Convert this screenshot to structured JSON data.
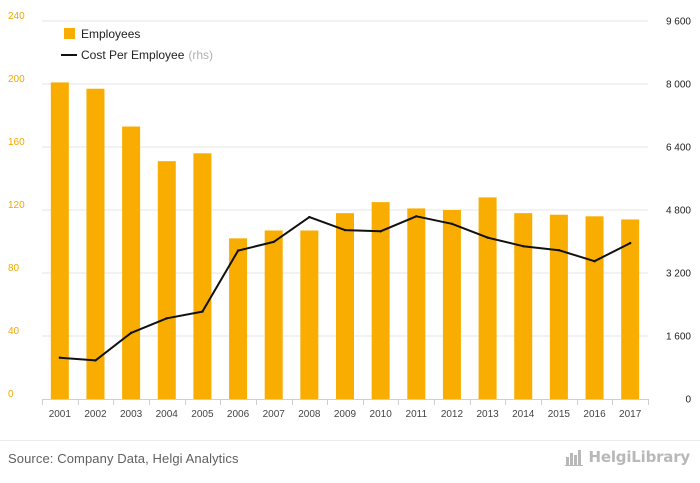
{
  "colors": {
    "bar": "#f9ad00",
    "line": "#111111",
    "left_axis_text": "#f0a800",
    "grid": "#e6e6e6"
  },
  "footer": {
    "source": "Source: Company Data, Helgi Analytics",
    "logo_text": "HelgiLibrary",
    "logo_icon": "chart-icon"
  },
  "legend": {
    "bar_label": "Employees",
    "line_label": "Cost Per Employee",
    "line_suffix": "(rhs)",
    "placement": "top-left"
  },
  "chart_data": {
    "type": "bar",
    "categories": [
      "2001",
      "2002",
      "2003",
      "2004",
      "2005",
      "2006",
      "2007",
      "2008",
      "2009",
      "2010",
      "2011",
      "2012",
      "2013",
      "2014",
      "2015",
      "2016",
      "2017"
    ],
    "series": [
      {
        "name": "Employees",
        "type": "bar",
        "axis": "left",
        "values": [
          201,
          197,
          173,
          151,
          156,
          102,
          107,
          107,
          118,
          125,
          121,
          120,
          128,
          118,
          117,
          116,
          114
        ]
      },
      {
        "name": "Cost Per Employee",
        "type": "line",
        "axis": "right",
        "values": [
          1050,
          980,
          1680,
          2050,
          2220,
          3770,
          3990,
          4620,
          4290,
          4260,
          4640,
          4450,
          4100,
          3880,
          3780,
          3500,
          3960
        ]
      }
    ],
    "y_left": {
      "ylim": [
        0,
        240
      ],
      "ticks": [
        0,
        40,
        80,
        120,
        160,
        200,
        240
      ],
      "tick_labels": [
        "0",
        "40",
        "80",
        "120",
        "160",
        "200",
        "240"
      ]
    },
    "y_right": {
      "ylim": [
        0,
        9600
      ],
      "ticks": [
        0,
        1600,
        3200,
        4800,
        6400,
        8000,
        9600
      ],
      "tick_labels": [
        "0",
        "1 600",
        "3 200",
        "4 800",
        "6 400",
        "8 000",
        "9 600"
      ]
    },
    "grid": true,
    "title": "",
    "xlabel": "",
    "ylabel": ""
  }
}
